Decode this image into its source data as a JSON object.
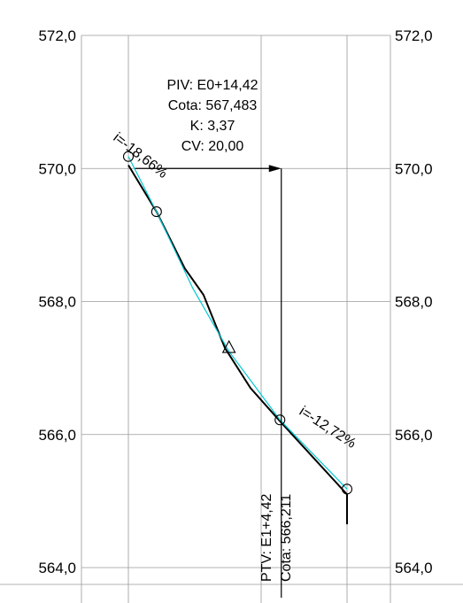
{
  "chart_data": {
    "type": "line",
    "title": "",
    "xlabel": "",
    "ylabel": "",
    "ylim": [
      564.0,
      572.0
    ],
    "y_ticks": [
      "572,0",
      "570,0",
      "568,0",
      "566,0",
      "564,0"
    ],
    "grid": true,
    "colors": {
      "ground": "#000000",
      "design": "#00c8d2",
      "grid": "#9a9a9a"
    },
    "series": [
      {
        "values_note": "",
        "points": [
          [
            0.0,
            570.05
          ],
          [
            2.1,
            569.35
          ],
          [
            4.2,
            568.5
          ],
          [
            5.6,
            568.1
          ],
          [
            7.2,
            567.3
          ],
          [
            9.1,
            566.7
          ],
          [
            11.3,
            566.2
          ],
          [
            13.8,
            565.65
          ],
          [
            16.3,
            565.1
          ],
          [
            16.3,
            564.65
          ]
        ]
      },
      {
        "points": [
          [
            0.0,
            570.18
          ],
          [
            2.1,
            569.35
          ],
          [
            4.8,
            568.2
          ],
          [
            7.5,
            567.25
          ],
          [
            11.3,
            566.22
          ],
          [
            16.3,
            565.18
          ]
        ]
      }
    ],
    "markers": {
      "circles": [
        [
          0.0,
          570.18
        ],
        [
          2.1,
          569.35
        ],
        [
          11.3,
          566.22
        ],
        [
          16.3,
          565.18
        ]
      ],
      "triangle": [
        7.5,
        567.3
      ]
    },
    "piv": {
      "lines": [
        "PIV: E0+14,42",
        "Cota: 567,483",
        "K: 3,37",
        "CV: 20,00"
      ],
      "arrow_y": 570.0,
      "arrow_x": [
        0.5,
        11.4
      ]
    },
    "ptv": {
      "lines": [
        "PTV: E1+4,42",
        "Cota: 566,211"
      ],
      "x": 11.3
    },
    "grades": [
      {
        "label": "i=-18,66%",
        "x": 0.0,
        "y": 570.4
      },
      {
        "label": "i=-12,72%",
        "x": 11.7,
        "y": 566.05
      }
    ]
  }
}
